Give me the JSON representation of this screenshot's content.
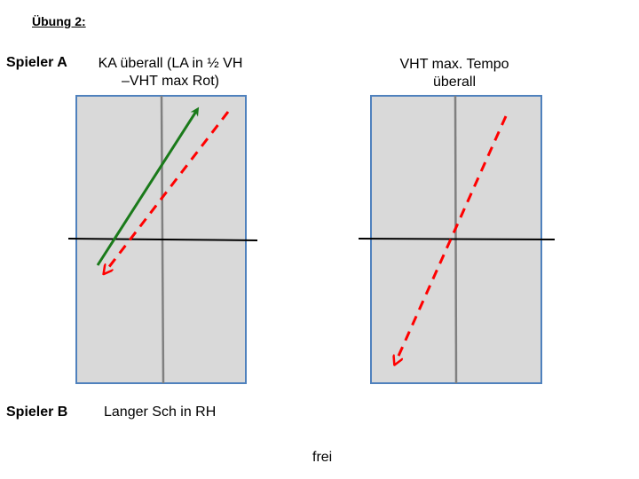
{
  "title": "Übung 2:",
  "player_a": {
    "label": "Spieler A",
    "left_caption_line1": "KA überall (LA in ½ VH",
    "left_caption_line2": "–VHT max Rot)",
    "right_caption_line1": "VHT max. Tempo",
    "right_caption_line2": "überall"
  },
  "player_b": {
    "label": "Spieler B",
    "task": "Langer Sch in RH",
    "note": "frei"
  },
  "colors": {
    "table_fill": "#d9d9d9",
    "table_border": "#4f81bd",
    "center_line": "#808080",
    "net": "#000000",
    "green_arrow": "#1a7a1a",
    "red_dashed": "#ff0000"
  }
}
